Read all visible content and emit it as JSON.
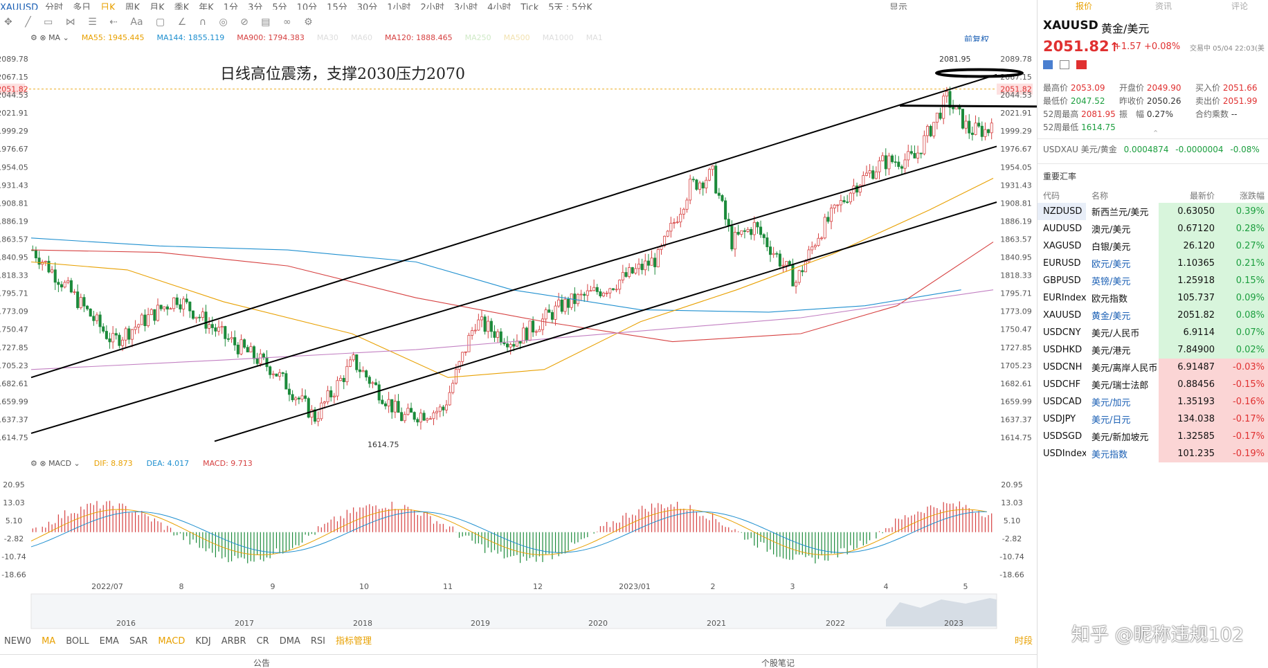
{
  "app": {
    "symbol": "XAUUSD",
    "periods": [
      "分时",
      "多日",
      "日K",
      "周K",
      "月K",
      "季K",
      "年K",
      "1分",
      "3分",
      "5分",
      "10分",
      "15分",
      "30分",
      "1小时",
      "2小时",
      "3小时",
      "4小时",
      "Tick",
      "5天 : 5分K"
    ],
    "active_period": "日K",
    "display_label": "显示"
  },
  "ma_legend": {
    "label": "MA",
    "items": [
      {
        "text": "MA55: 1945.445",
        "color": "#e8a000"
      },
      {
        "text": "MA144: 1855.119",
        "color": "#1e8fcf"
      },
      {
        "text": "MA900: 1794.383",
        "color": "#d64040"
      },
      {
        "text": "MA30",
        "color": "#dddddd"
      },
      {
        "text": "MA60",
        "color": "#dddddd"
      },
      {
        "text": "MA120: 1888.465",
        "color": "#d64040"
      },
      {
        "text": "MA250",
        "color": "#cfe9c6"
      },
      {
        "text": "MA500",
        "color": "#f2e2b0"
      },
      {
        "text": "MA1000",
        "color": "#dddddd"
      },
      {
        "text": "MA1",
        "color": "#dddddd"
      }
    ],
    "adjust_label": "前复权"
  },
  "annotation": "日线高位震荡，支撑2030压力2070",
  "price_axis": [
    "2089.78",
    "2067.15",
    "2051.82",
    "2044.53",
    "2021.91",
    "1999.29",
    "1976.67",
    "1954.05",
    "1931.43",
    "1908.81",
    "1886.19",
    "1863.57",
    "1840.95",
    "1818.33",
    "1795.71",
    "1773.09",
    "1750.47",
    "1727.85",
    "1705.23",
    "1682.61",
    "1659.99",
    "1637.37",
    "1614.75"
  ],
  "high_marker": "2081.95",
  "low_marker": "1614.75",
  "macd_legend": {
    "label": "MACD",
    "dif": "DIF: 8.873",
    "dea": "DEA: 4.017",
    "macd": "MACD: 9.713"
  },
  "macd_axis": [
    "20.95",
    "13.03",
    "5.10",
    "-2.82",
    "-10.74",
    "-18.66"
  ],
  "date_axis": [
    "2022/07",
    "8",
    "9",
    "10",
    "11",
    "12",
    "2023/01",
    "2",
    "3",
    "4",
    "5"
  ],
  "overview_years": [
    "2016",
    "2017",
    "2018",
    "2019",
    "2020",
    "2021",
    "2022",
    "2023"
  ],
  "indicators": [
    "NEW0",
    "MA",
    "BOLL",
    "EMA",
    "SAR",
    "MACD",
    "KDJ",
    "ARBR",
    "CR",
    "DMA",
    "RSI"
  ],
  "active_indicators": [
    "MA",
    "MACD"
  ],
  "indicator_manage": "指标管理",
  "time_share_label": "时段",
  "bottom": {
    "notice": "公告",
    "notes": "个股笔记"
  },
  "quote": {
    "tabs": [
      "报价",
      "资讯",
      "评论"
    ],
    "code": "XAUUSD",
    "name": "黄金/美元",
    "price": "2051.82",
    "arrow": "↑",
    "change": "+1.57",
    "change_pct": "+0.08%",
    "trade_time": "交易中 05/04 22:03(美",
    "high_label": "最高价",
    "high": "2053.09",
    "open_label": "开盘价",
    "open": "2049.90",
    "bid_label": "买入价",
    "bid": "2051.66",
    "low_label": "最低价",
    "low": "2047.52",
    "prev_label": "昨收价",
    "prev": "2050.26",
    "ask_label": "卖出价",
    "ask": "2051.99",
    "w52h_label": "52周最高",
    "w52h": "2081.95",
    "amp_label": "振　幅",
    "amp": "0.27%",
    "contract_label": "合约乘数",
    "contract": "--",
    "w52l_label": "52周最低",
    "w52l": "1614.75",
    "usdx": {
      "code": "USDXAU",
      "name": "美元/黄金",
      "price": "0.0004874",
      "change": "-0.0000004",
      "pct": "-0.08%"
    }
  },
  "fx": {
    "title": "重要汇率",
    "headers": [
      "代码",
      "名称",
      "最新价",
      "涨跌幅"
    ],
    "rows": [
      {
        "code": "NZDUSD",
        "name": "新西兰元/美元",
        "price": "0.63050",
        "pct": "0.39%",
        "dir": "up",
        "sel": true
      },
      {
        "code": "AUDUSD",
        "name": "澳元/美元",
        "price": "0.67120",
        "pct": "0.28%",
        "dir": "up"
      },
      {
        "code": "XAGUSD",
        "name": "白银/美元",
        "price": "26.120",
        "pct": "0.27%",
        "dir": "up"
      },
      {
        "code": "EURUSD",
        "name": "欧元/美元",
        "price": "1.10365",
        "pct": "0.21%",
        "dir": "up"
      },
      {
        "code": "GBPUSD",
        "name": "英镑/美元",
        "price": "1.25918",
        "pct": "0.15%",
        "dir": "up"
      },
      {
        "code": "EURIndex",
        "name": "欧元指数",
        "price": "105.737",
        "pct": "0.09%",
        "dir": "up"
      },
      {
        "code": "XAUUSD",
        "name": "黄金/美元",
        "price": "2051.82",
        "pct": "0.08%",
        "dir": "up"
      },
      {
        "code": "USDCNY",
        "name": "美元/人民币",
        "price": "6.9114",
        "pct": "0.07%",
        "dir": "up"
      },
      {
        "code": "USDHKD",
        "name": "美元/港元",
        "price": "7.84900",
        "pct": "0.02%",
        "dir": "up"
      },
      {
        "code": "USDCNH",
        "name": "美元/离岸人民币",
        "price": "6.91487",
        "pct": "-0.03%",
        "dir": "dn"
      },
      {
        "code": "USDCHF",
        "name": "美元/瑞士法郎",
        "price": "0.88456",
        "pct": "-0.15%",
        "dir": "dn"
      },
      {
        "code": "USDCAD",
        "name": "美元/加元",
        "price": "1.35193",
        "pct": "-0.16%",
        "dir": "dn"
      },
      {
        "code": "USDJPY",
        "name": "美元/日元",
        "price": "134.038",
        "pct": "-0.17%",
        "dir": "dn"
      },
      {
        "code": "USDSGD",
        "name": "美元/新加坡元",
        "price": "1.32585",
        "pct": "-0.17%",
        "dir": "dn"
      },
      {
        "code": "USDIndex",
        "name": "美元指数",
        "price": "101.235",
        "pct": "-0.19%",
        "dir": "dn"
      }
    ]
  },
  "watermark": "知乎 @昵称违规102"
}
